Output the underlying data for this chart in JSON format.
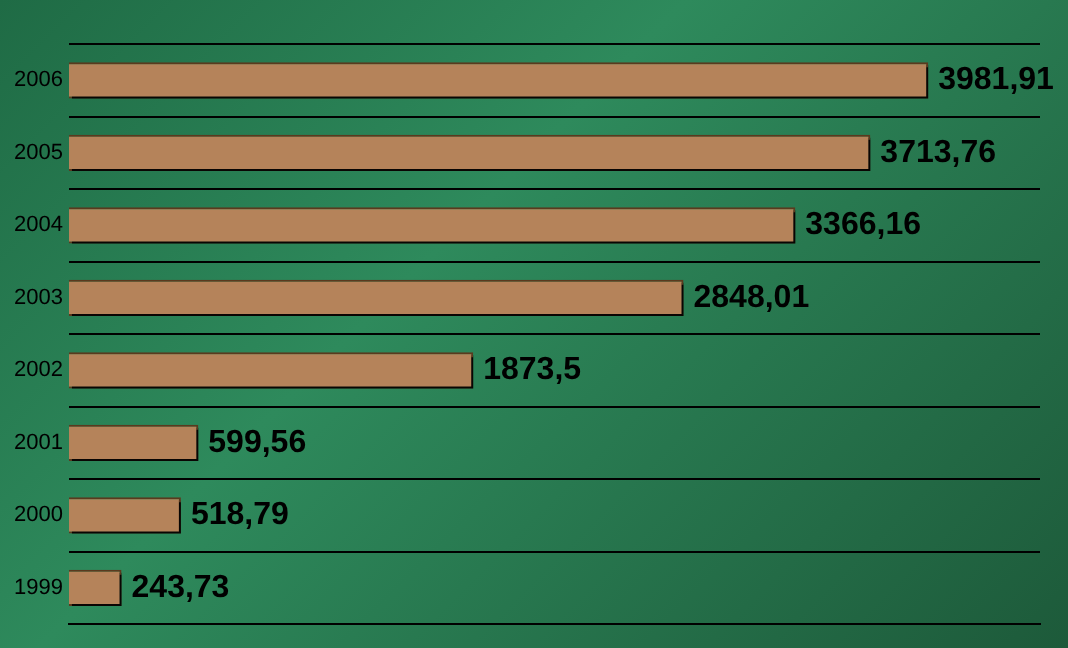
{
  "chart_data": {
    "type": "bar",
    "orientation": "horizontal",
    "categories": [
      "2006",
      "2005",
      "2004",
      "2003",
      "2002",
      "2001",
      "2000",
      "1999"
    ],
    "values": [
      3981.91,
      3713.76,
      3366.16,
      2848.01,
      1873.5,
      599.56,
      518.79,
      243.73
    ],
    "value_labels": [
      "3981,91",
      "3713,76",
      "3366,16",
      "2848,01",
      "1873,5",
      "599,56",
      "518,79",
      "243,73"
    ],
    "color": "#b5835a",
    "grid": "y"
  }
}
